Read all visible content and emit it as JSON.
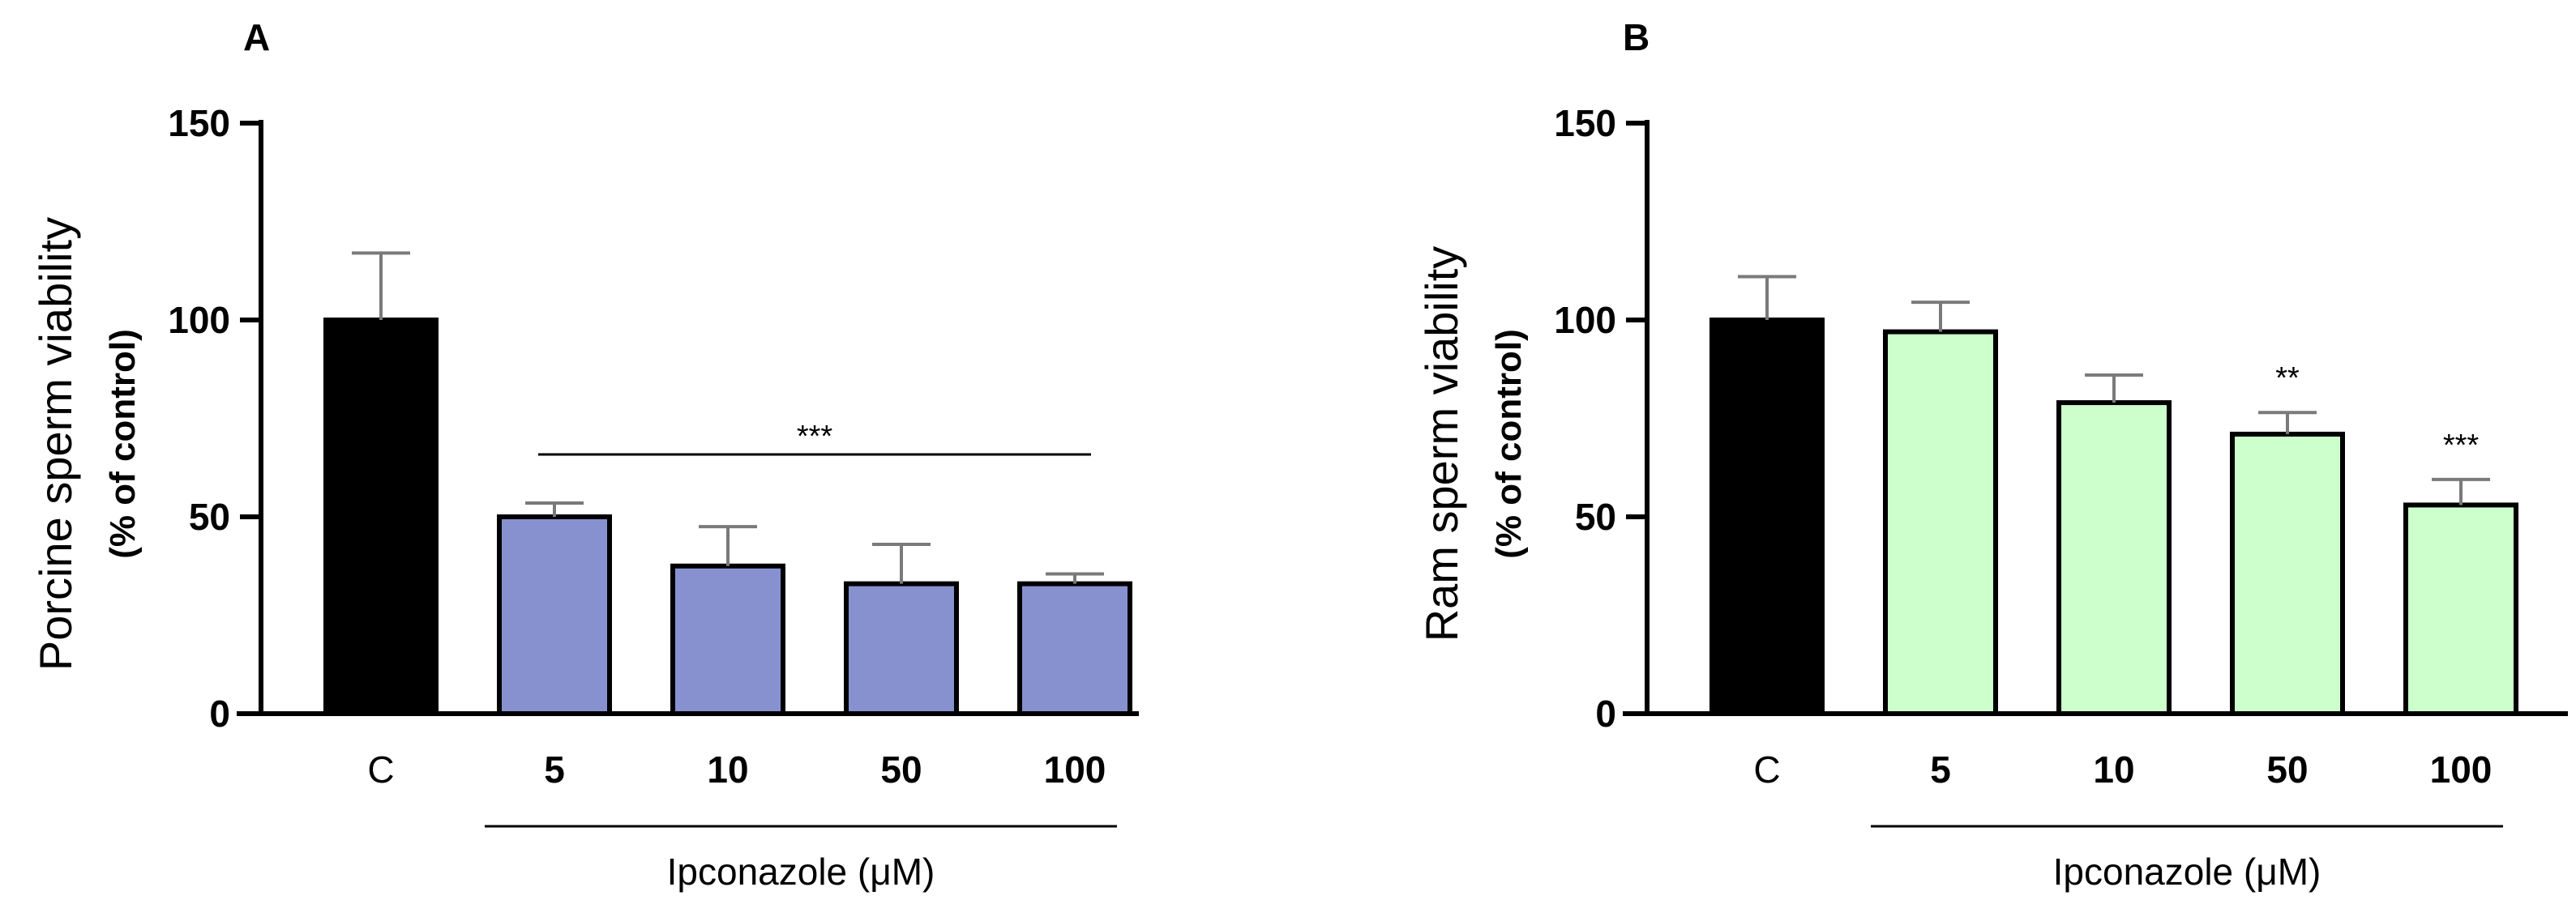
{
  "figure": {
    "background": "#ffffff",
    "axis_color": "#000000",
    "errorbar_color": "#7a7a7a"
  },
  "chart_data": [
    {
      "type": "bar",
      "panel": "A",
      "title": "",
      "categories": [
        "C",
        "5",
        "10",
        "50",
        "100"
      ],
      "values": [
        100,
        50,
        37.5,
        33,
        33
      ],
      "errors": [
        17,
        3.5,
        10,
        10,
        2.5
      ],
      "bar_colors": [
        "#000000",
        "#8891d0",
        "#8891d0",
        "#8891d0",
        "#8891d0"
      ],
      "ylabel": "Porcine sperm viability",
      "ylabel_sub": "(% of control)",
      "xgroup_label": "Ipconazole (μM)",
      "ylim": [
        0,
        150
      ],
      "yticks": [
        0,
        50,
        100,
        150
      ],
      "significance": [
        {
          "label": "***",
          "span": [
            "5",
            "100"
          ]
        }
      ]
    },
    {
      "type": "bar",
      "panel": "B",
      "title": "",
      "categories": [
        "C",
        "5",
        "10",
        "50",
        "100"
      ],
      "values": [
        100,
        97,
        79,
        71,
        53
      ],
      "errors": [
        11,
        7.5,
        7,
        5.5,
        6.5
      ],
      "bar_colors": [
        "#000000",
        "#ccffcc",
        "#ccffcc",
        "#ccffcc",
        "#ccffcc"
      ],
      "ylabel": "Ram sperm viability",
      "ylabel_sub": "(% of control)",
      "xgroup_label": "Ipconazole (μM)",
      "ylim": [
        0,
        150
      ],
      "yticks": [
        0,
        50,
        100,
        150
      ],
      "significance": [
        {
          "label": "**",
          "category": "50"
        },
        {
          "label": "***",
          "category": "100"
        }
      ]
    }
  ]
}
